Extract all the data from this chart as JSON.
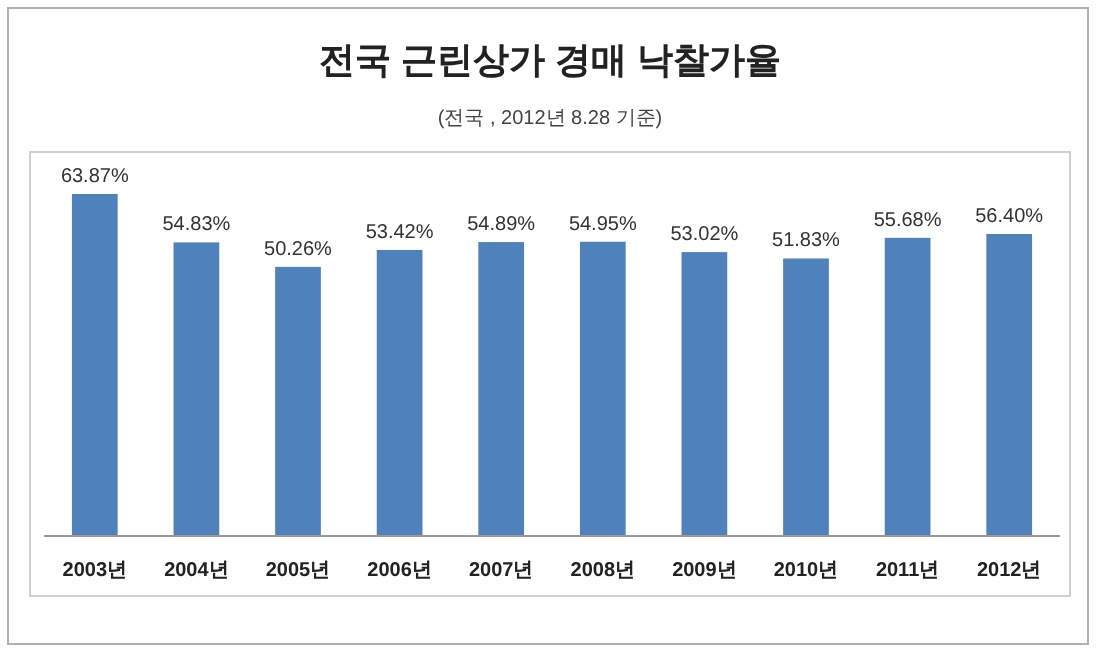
{
  "chart_data": {
    "type": "bar",
    "title": "전국 근린상가 경매 낙찰가율",
    "subtitle": "(전국 , 2012년 8.28 기준)",
    "categories": [
      "2003년",
      "2004년",
      "2005년",
      "2006년",
      "2007년",
      "2008년",
      "2009년",
      "2010년",
      "2011년",
      "2012년"
    ],
    "values": [
      63.87,
      54.83,
      50.26,
      53.42,
      54.89,
      54.95,
      53.02,
      51.83,
      55.68,
      56.4
    ],
    "value_labels": [
      "63.87%",
      "54.83%",
      "50.26%",
      "53.42%",
      "54.89%",
      "54.95%",
      "53.02%",
      "51.83%",
      "55.68%",
      "56.40%"
    ],
    "color": "#4f81bd"
  }
}
